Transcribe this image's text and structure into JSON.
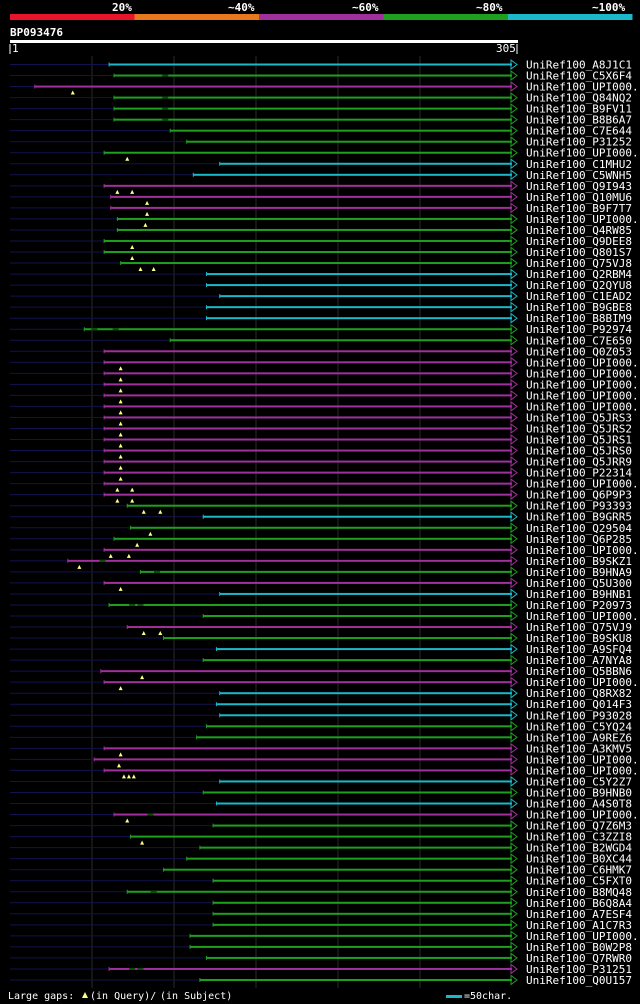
{
  "header": {
    "scale_labels": [
      "20%",
      "~40%",
      "~60%",
      "~80%",
      "~100%"
    ],
    "scale_colors": [
      "#e8142c",
      "#e8781e",
      "#a0309c",
      "#1ea01e",
      "#1ab8c8"
    ],
    "query_id": "BP093476",
    "ruler_start": "1",
    "ruler_end": "305"
  },
  "query_length": 305,
  "legend": {
    "gaps_label": "Large gaps:",
    "in_query_label": "(in Query)/",
    "in_subject_label": "(in Subject)",
    "scale_label": "=50char."
  },
  "hits": [
    {
      "name": "UniRef100_A8J1C1",
      "start": 61,
      "end": 305,
      "identity": "cyan",
      "qgaps": [],
      "sgaps": []
    },
    {
      "name": "UniRef100_C5X6F4",
      "start": 64,
      "end": 305,
      "identity": "green",
      "qgaps": [],
      "sgaps": [
        95
      ]
    },
    {
      "name": "UniRef100_UPI000..",
      "start": 16,
      "end": 305,
      "identity": "purple",
      "qgaps": [
        39
      ],
      "sgaps": []
    },
    {
      "name": "UniRef100_Q84NQ2",
      "start": 64,
      "end": 305,
      "identity": "green",
      "qgaps": [],
      "sgaps": [
        95
      ]
    },
    {
      "name": "UniRef100_B9FV11",
      "start": 64,
      "end": 305,
      "identity": "green",
      "qgaps": [],
      "sgaps": [
        95
      ]
    },
    {
      "name": "UniRef100_B8B6A7",
      "start": 64,
      "end": 305,
      "identity": "green",
      "qgaps": [],
      "sgaps": [
        95
      ]
    },
    {
      "name": "UniRef100_C7E644",
      "start": 98,
      "end": 305,
      "identity": "green",
      "qgaps": [],
      "sgaps": []
    },
    {
      "name": "UniRef100_P31252",
      "start": 108,
      "end": 305,
      "identity": "green",
      "qgaps": [],
      "sgaps": []
    },
    {
      "name": "UniRef100_UPI000..",
      "start": 58,
      "end": 305,
      "identity": "green",
      "qgaps": [
        72
      ],
      "sgaps": []
    },
    {
      "name": "UniRef100_C1MHU2",
      "start": 128,
      "end": 305,
      "identity": "cyan",
      "qgaps": [],
      "sgaps": []
    },
    {
      "name": "UniRef100_C5WNH5",
      "start": 112,
      "end": 305,
      "identity": "cyan",
      "qgaps": [],
      "sgaps": []
    },
    {
      "name": "UniRef100_Q9I943",
      "start": 58,
      "end": 305,
      "identity": "purple",
      "qgaps": [
        66,
        75
      ],
      "sgaps": []
    },
    {
      "name": "UniRef100_Q10MU6",
      "start": 62,
      "end": 305,
      "identity": "purple",
      "qgaps": [
        84
      ],
      "sgaps": []
    },
    {
      "name": "UniRef100_B9F7T7",
      "start": 62,
      "end": 305,
      "identity": "purple",
      "qgaps": [
        84
      ],
      "sgaps": []
    },
    {
      "name": "UniRef100_UPI000..",
      "start": 66,
      "end": 305,
      "identity": "green",
      "qgaps": [
        83
      ],
      "sgaps": []
    },
    {
      "name": "UniRef100_Q4RW85",
      "start": 66,
      "end": 305,
      "identity": "green",
      "qgaps": [],
      "sgaps": []
    },
    {
      "name": "UniRef100_Q9DEE8",
      "start": 58,
      "end": 305,
      "identity": "green",
      "qgaps": [
        75
      ],
      "sgaps": []
    },
    {
      "name": "UniRef100_Q801S7",
      "start": 58,
      "end": 305,
      "identity": "green",
      "qgaps": [
        75
      ],
      "sgaps": []
    },
    {
      "name": "UniRef100_Q75VJ8",
      "start": 68,
      "end": 305,
      "identity": "green",
      "qgaps": [
        80,
        88
      ],
      "sgaps": []
    },
    {
      "name": "UniRef100_Q2RBM4",
      "start": 120,
      "end": 305,
      "identity": "cyan",
      "qgaps": [],
      "sgaps": []
    },
    {
      "name": "UniRef100_Q2QYU8",
      "start": 120,
      "end": 305,
      "identity": "cyan",
      "qgaps": [],
      "sgaps": []
    },
    {
      "name": "UniRef100_C1EAD2",
      "start": 128,
      "end": 305,
      "identity": "cyan",
      "qgaps": [],
      "sgaps": []
    },
    {
      "name": "UniRef100_B9GBE8",
      "start": 120,
      "end": 305,
      "identity": "cyan",
      "qgaps": [],
      "sgaps": []
    },
    {
      "name": "UniRef100_B8BIM9",
      "start": 120,
      "end": 305,
      "identity": "cyan",
      "qgaps": [],
      "sgaps": []
    },
    {
      "name": "UniRef100_P92974",
      "start": 46,
      "end": 305,
      "identity": "green",
      "qgaps": [],
      "sgaps": [
        52,
        65
      ]
    },
    {
      "name": "UniRef100_C7E650",
      "start": 98,
      "end": 305,
      "identity": "green",
      "qgaps": [],
      "sgaps": []
    },
    {
      "name": "UniRef100_Q0Z053",
      "start": 58,
      "end": 305,
      "identity": "purple",
      "qgaps": [],
      "sgaps": []
    },
    {
      "name": "UniRef100_UPI000..",
      "start": 58,
      "end": 305,
      "identity": "purple",
      "qgaps": [
        68
      ],
      "sgaps": []
    },
    {
      "name": "UniRef100_UPI000..",
      "start": 58,
      "end": 305,
      "identity": "purple",
      "qgaps": [
        68
      ],
      "sgaps": []
    },
    {
      "name": "UniRef100_UPI000..",
      "start": 58,
      "end": 305,
      "identity": "purple",
      "qgaps": [
        68
      ],
      "sgaps": []
    },
    {
      "name": "UniRef100_UPI000..",
      "start": 58,
      "end": 305,
      "identity": "purple",
      "qgaps": [
        68
      ],
      "sgaps": []
    },
    {
      "name": "UniRef100_UPI000..",
      "start": 58,
      "end": 305,
      "identity": "purple",
      "qgaps": [
        68
      ],
      "sgaps": []
    },
    {
      "name": "UniRef100_Q5JRS3",
      "start": 58,
      "end": 305,
      "identity": "purple",
      "qgaps": [
        68
      ],
      "sgaps": []
    },
    {
      "name": "UniRef100_Q5JRS2",
      "start": 58,
      "end": 305,
      "identity": "purple",
      "qgaps": [
        68
      ],
      "sgaps": []
    },
    {
      "name": "UniRef100_Q5JRS1",
      "start": 58,
      "end": 305,
      "identity": "purple",
      "qgaps": [
        68
      ],
      "sgaps": []
    },
    {
      "name": "UniRef100_Q5JRS0",
      "start": 58,
      "end": 305,
      "identity": "purple",
      "qgaps": [
        68
      ],
      "sgaps": []
    },
    {
      "name": "UniRef100_Q5JRR9",
      "start": 58,
      "end": 305,
      "identity": "purple",
      "qgaps": [
        68
      ],
      "sgaps": []
    },
    {
      "name": "UniRef100_P22314",
      "start": 58,
      "end": 305,
      "identity": "purple",
      "qgaps": [
        68
      ],
      "sgaps": []
    },
    {
      "name": "UniRef100_UPI000..",
      "start": 58,
      "end": 305,
      "identity": "purple",
      "qgaps": [
        66,
        75
      ],
      "sgaps": []
    },
    {
      "name": "UniRef100_Q6P9P3",
      "start": 58,
      "end": 305,
      "identity": "purple",
      "qgaps": [
        66,
        75
      ],
      "sgaps": []
    },
    {
      "name": "UniRef100_P93393",
      "start": 72,
      "end": 305,
      "identity": "green",
      "qgaps": [
        82,
        92
      ],
      "sgaps": []
    },
    {
      "name": "UniRef100_B9GRR5",
      "start": 118,
      "end": 305,
      "identity": "cyan",
      "qgaps": [],
      "sgaps": []
    },
    {
      "name": "UniRef100_Q29504",
      "start": 74,
      "end": 305,
      "identity": "green",
      "qgaps": [
        86
      ],
      "sgaps": []
    },
    {
      "name": "UniRef100_Q6P285",
      "start": 64,
      "end": 305,
      "identity": "green",
      "qgaps": [
        78
      ],
      "sgaps": []
    },
    {
      "name": "UniRef100_UPI000..",
      "start": 58,
      "end": 305,
      "identity": "purple",
      "qgaps": [
        62,
        73
      ],
      "sgaps": []
    },
    {
      "name": "UniRef100_B9SKZ1",
      "start": 36,
      "end": 305,
      "identity": "purple",
      "qgaps": [
        43
      ],
      "sgaps": [
        57
      ]
    },
    {
      "name": "UniRef100_B9HNA9",
      "start": 80,
      "end": 305,
      "identity": "green",
      "qgaps": [],
      "sgaps": [
        90
      ]
    },
    {
      "name": "UniRef100_Q5U300",
      "start": 58,
      "end": 305,
      "identity": "purple",
      "qgaps": [
        68
      ],
      "sgaps": []
    },
    {
      "name": "UniRef100_B9HNB1",
      "start": 128,
      "end": 305,
      "identity": "cyan",
      "qgaps": [],
      "sgaps": []
    },
    {
      "name": "UniRef100_P20973",
      "start": 61,
      "end": 305,
      "identity": "green",
      "qgaps": [],
      "sgaps": [
        75,
        80
      ]
    },
    {
      "name": "UniRef100_UPI000..",
      "start": 118,
      "end": 305,
      "identity": "green",
      "qgaps": [],
      "sgaps": []
    },
    {
      "name": "UniRef100_Q75VJ9",
      "start": 72,
      "end": 305,
      "identity": "purple",
      "qgaps": [
        82,
        92
      ],
      "sgaps": []
    },
    {
      "name": "UniRef100_B9SKU8",
      "start": 94,
      "end": 305,
      "identity": "green",
      "qgaps": [],
      "sgaps": []
    },
    {
      "name": "UniRef100_A9SFQ4",
      "start": 126,
      "end": 305,
      "identity": "cyan",
      "qgaps": [],
      "sgaps": []
    },
    {
      "name": "UniRef100_A7NYA8",
      "start": 118,
      "end": 305,
      "identity": "green",
      "qgaps": [],
      "sgaps": []
    },
    {
      "name": "UniRef100_Q5BBN6",
      "start": 56,
      "end": 305,
      "identity": "purple",
      "qgaps": [
        81
      ],
      "sgaps": []
    },
    {
      "name": "UniRef100_UPI000..",
      "start": 58,
      "end": 305,
      "identity": "purple",
      "qgaps": [
        68
      ],
      "sgaps": []
    },
    {
      "name": "UniRef100_Q8RX82",
      "start": 128,
      "end": 305,
      "identity": "cyan",
      "qgaps": [],
      "sgaps": []
    },
    {
      "name": "UniRef100_Q014F3",
      "start": 126,
      "end": 305,
      "identity": "cyan",
      "qgaps": [],
      "sgaps": []
    },
    {
      "name": "UniRef100_P93028",
      "start": 128,
      "end": 305,
      "identity": "cyan",
      "qgaps": [],
      "sgaps": []
    },
    {
      "name": "UniRef100_C5YQ24",
      "start": 120,
      "end": 305,
      "identity": "green",
      "qgaps": [],
      "sgaps": []
    },
    {
      "name": "UniRef100_A9REZ6",
      "start": 114,
      "end": 305,
      "identity": "green",
      "qgaps": [],
      "sgaps": []
    },
    {
      "name": "UniRef100_A3KMV5",
      "start": 58,
      "end": 305,
      "identity": "purple",
      "qgaps": [
        68
      ],
      "sgaps": []
    },
    {
      "name": "UniRef100_UPI000..",
      "start": 52,
      "end": 305,
      "identity": "purple",
      "qgaps": [
        67
      ],
      "sgaps": []
    },
    {
      "name": "UniRef100_UPI000..",
      "start": 58,
      "end": 305,
      "identity": "purple",
      "qgaps": [
        70,
        73,
        76
      ],
      "sgaps": []
    },
    {
      "name": "UniRef100_C5Y2Z7",
      "start": 128,
      "end": 305,
      "identity": "cyan",
      "qgaps": [],
      "sgaps": []
    },
    {
      "name": "UniRef100_B9HNB0",
      "start": 118,
      "end": 305,
      "identity": "green",
      "qgaps": [],
      "sgaps": []
    },
    {
      "name": "UniRef100_A4S0T8",
      "start": 126,
      "end": 305,
      "identity": "cyan",
      "qgaps": [],
      "sgaps": []
    },
    {
      "name": "UniRef100_UPI000..",
      "start": 64,
      "end": 305,
      "identity": "purple",
      "qgaps": [
        72
      ],
      "sgaps": [
        86
      ]
    },
    {
      "name": "UniRef100_Q7Z6M3",
      "start": 124,
      "end": 305,
      "identity": "green",
      "qgaps": [],
      "sgaps": []
    },
    {
      "name": "UniRef100_C3ZZI8",
      "start": 74,
      "end": 305,
      "identity": "green",
      "qgaps": [
        81
      ],
      "sgaps": []
    },
    {
      "name": "UniRef100_B2WGD4",
      "start": 116,
      "end": 305,
      "identity": "green",
      "qgaps": [],
      "sgaps": []
    },
    {
      "name": "UniRef100_B0XC44",
      "start": 108,
      "end": 305,
      "identity": "green",
      "qgaps": [],
      "sgaps": []
    },
    {
      "name": "UniRef100_C6HMK7",
      "start": 94,
      "end": 305,
      "identity": "green",
      "qgaps": [],
      "sgaps": []
    },
    {
      "name": "UniRef100_C5FXT0",
      "start": 124,
      "end": 305,
      "identity": "green",
      "qgaps": [],
      "sgaps": []
    },
    {
      "name": "UniRef100_B8MQ48",
      "start": 72,
      "end": 305,
      "identity": "green",
      "qgaps": [],
      "sgaps": [
        88
      ]
    },
    {
      "name": "UniRef100_B6Q8A4",
      "start": 124,
      "end": 305,
      "identity": "green",
      "qgaps": [],
      "sgaps": []
    },
    {
      "name": "UniRef100_A7ESF4",
      "start": 124,
      "end": 305,
      "identity": "green",
      "qgaps": [],
      "sgaps": []
    },
    {
      "name": "UniRef100_A1C7R3",
      "start": 124,
      "end": 305,
      "identity": "green",
      "qgaps": [],
      "sgaps": []
    },
    {
      "name": "UniRef100_UPI000..",
      "start": 110,
      "end": 305,
      "identity": "green",
      "qgaps": [],
      "sgaps": []
    },
    {
      "name": "UniRef100_B0W2P8",
      "start": 110,
      "end": 305,
      "identity": "green",
      "qgaps": [],
      "sgaps": []
    },
    {
      "name": "UniRef100_Q7RWR0",
      "start": 120,
      "end": 305,
      "identity": "green",
      "qgaps": [],
      "sgaps": []
    },
    {
      "name": "UniRef100_P31251",
      "start": 61,
      "end": 305,
      "identity": "purple",
      "qgaps": [],
      "sgaps": [
        75,
        80
      ]
    },
    {
      "name": "UniRef100_Q0U157",
      "start": 116,
      "end": 305,
      "identity": "green",
      "qgaps": [],
      "sgaps": []
    }
  ]
}
